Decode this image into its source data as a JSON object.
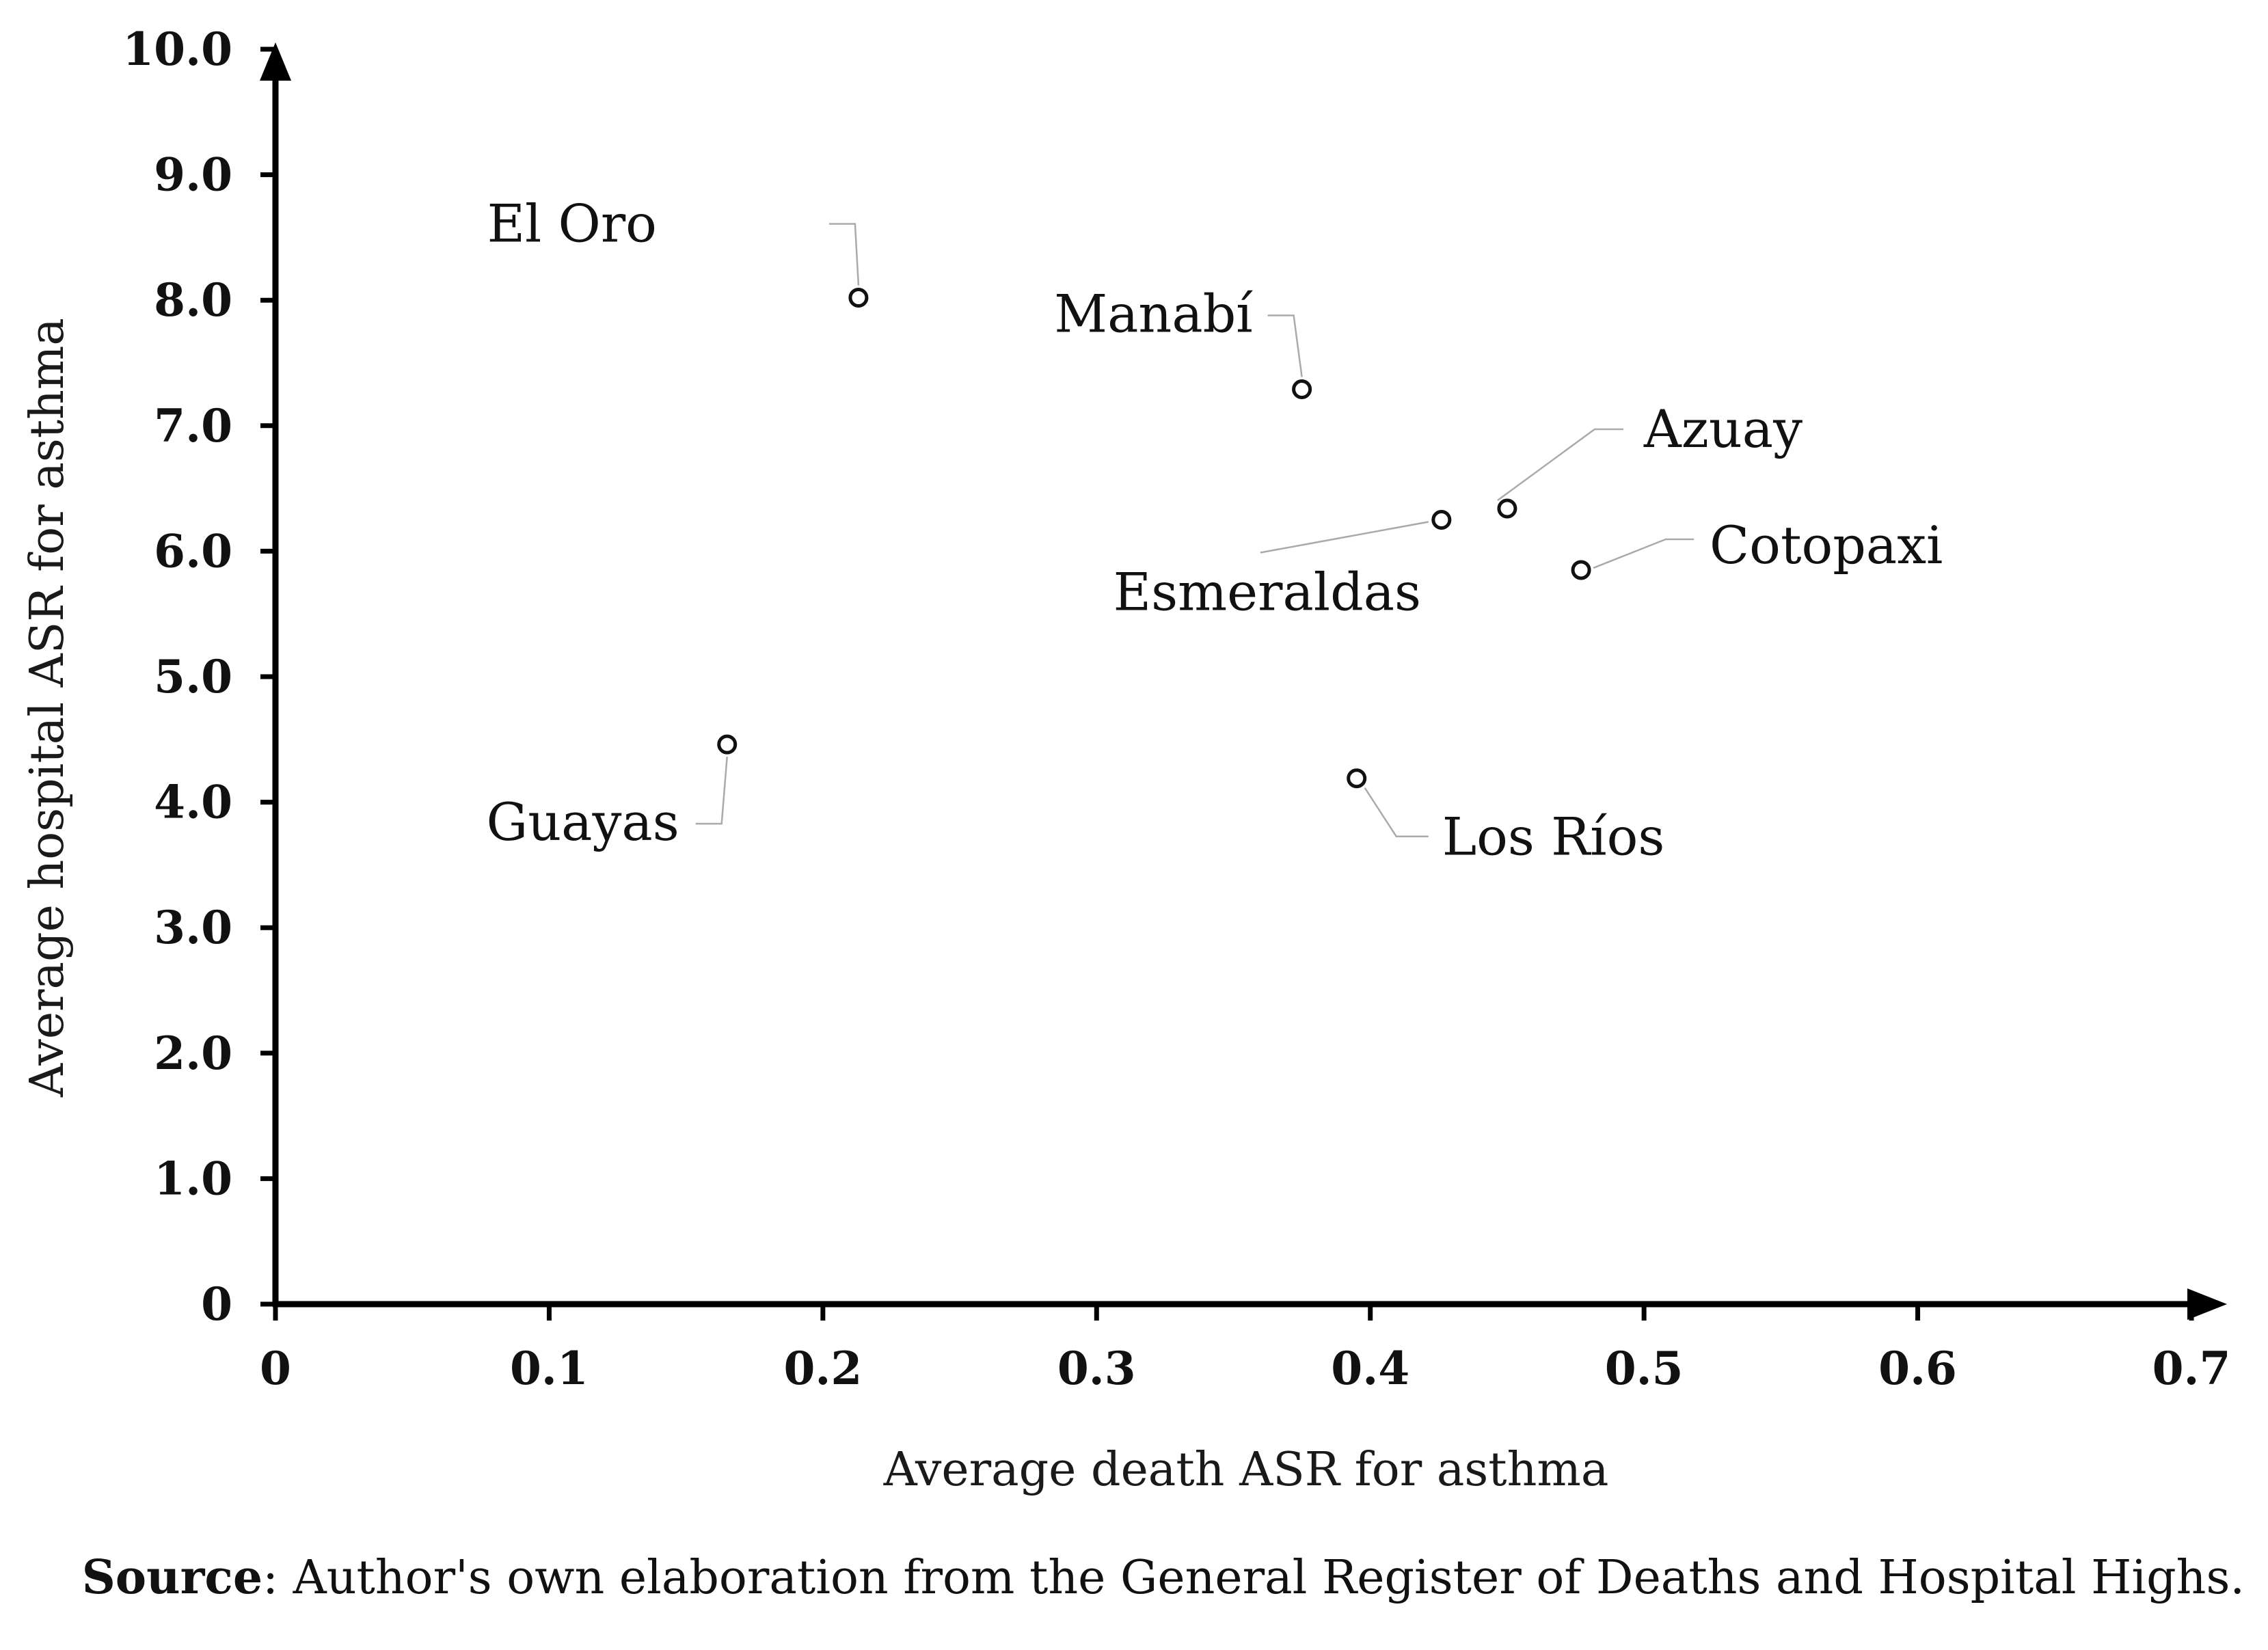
{
  "chart_data": {
    "type": "scatter",
    "xlabel": "Average death ASR for asthma",
    "ylabel": "Average hospital ASR for asthma",
    "xlim": [
      0,
      0.7
    ],
    "ylim": [
      0,
      10
    ],
    "x_ticks": [
      "0",
      "0.1",
      "0.2",
      "0.3",
      "0.4",
      "0.5",
      "0.6",
      "0.7"
    ],
    "x_tick_values": [
      0,
      0.1,
      0.2,
      0.3,
      0.4,
      0.5,
      0.6,
      0.7
    ],
    "y_ticks": [
      "0",
      "1.0",
      "2.0",
      "3.0",
      "4.0",
      "5.0",
      "6.0",
      "7.0",
      "8.0",
      "9.0",
      "10.0"
    ],
    "y_tick_values": [
      0,
      1,
      2,
      3,
      4,
      5,
      6,
      7,
      8,
      9,
      10
    ],
    "grid": false,
    "points": [
      {
        "label": "El Oro",
        "x": 0.213,
        "y": 8.02
      },
      {
        "label": "Manabí",
        "x": 0.375,
        "y": 7.29
      },
      {
        "label": "Azuay",
        "x": 0.45,
        "y": 6.34
      },
      {
        "label": "Esmeraldas",
        "x": 0.426,
        "y": 6.25
      },
      {
        "label": "Cotopaxi",
        "x": 0.477,
        "y": 5.85
      },
      {
        "label": "Guayas",
        "x": 0.165,
        "y": 4.46
      },
      {
        "label": "Los Ríos",
        "x": 0.395,
        "y": 4.19
      }
    ]
  },
  "source": {
    "bold": "Source",
    "text": ": Author's own elaboration from the General Register of Deaths and Hospital Highs."
  }
}
